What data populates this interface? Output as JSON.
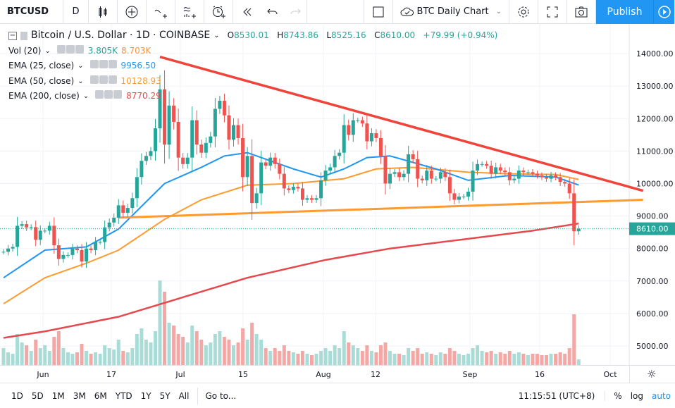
{
  "toolbar": {
    "symbol": "BTCUSD",
    "interval": "D",
    "chart_name": "BTC Daily Chart",
    "publish": "Publish"
  },
  "legend": {
    "title": "Bitcoin / U.S. Dollar · 1D · COINBASE",
    "o_label": "O",
    "o": "8530.01",
    "h_label": "H",
    "h": "8743.86",
    "l_label": "L",
    "l": "8525.16",
    "c_label": "C",
    "c": "8610.00",
    "change": "+79.99 (+0.94%)",
    "indicators": [
      {
        "name": "Vol (20)",
        "values": [
          "3.805K",
          "8.703K"
        ],
        "colors": [
          "#26a69a",
          "#f7953c"
        ]
      },
      {
        "name": "EMA (25, close)",
        "values": [
          "9956.50"
        ],
        "colors": [
          "#2196f3"
        ]
      },
      {
        "name": "EMA (50, close)",
        "values": [
          "10128.93"
        ],
        "colors": [
          "#ff9a2e"
        ]
      },
      {
        "name": "EMA (200, close)",
        "values": [
          "8770.29"
        ],
        "colors": [
          "#e5494d"
        ]
      }
    ]
  },
  "price_axis": {
    "ticks": [
      "14000.00",
      "13000.00",
      "12000.00",
      "11000.00",
      "10000.00",
      "9000.00",
      "8000.00",
      "7000.00",
      "6000.00",
      "5000.00"
    ],
    "last_price": "8610.00"
  },
  "time_axis": {
    "labels": [
      "Jun",
      "17",
      "Jul",
      "15",
      "Aug",
      "12",
      "Sep",
      "16",
      "Oct"
    ]
  },
  "bottom": {
    "ranges": [
      "1D",
      "5D",
      "1M",
      "3M",
      "6M",
      "YTD",
      "1Y",
      "5Y",
      "All"
    ],
    "goto": "Go to...",
    "clock": "11:15:51 (UTC+8)",
    "percent": "%",
    "log": "log",
    "auto": "auto"
  },
  "colors": {
    "up": "#26a69a",
    "down": "#ef5350",
    "accent": "#2196f3",
    "trend": "#f0443a",
    "support": "#ff9a2e"
  },
  "series": {
    "start_date": "05-23",
    "closes": [
      7900,
      8000,
      8050,
      8700,
      8750,
      8650,
      8660,
      8270,
      8550,
      8550,
      8700,
      8100,
      7680,
      7800,
      7800,
      8000,
      7950,
      7600,
      8000,
      7950,
      8200,
      8200,
      8650,
      8800,
      8950,
      9330,
      9100,
      9250,
      9550,
      10200,
      10700,
      10850,
      11000,
      11700,
      12900,
      11200,
      12400,
      11900,
      10800,
      10600,
      10800,
      11950,
      11200,
      10950,
      11250,
      11450,
      12300,
      12550,
      12100,
      11350,
      11800,
      11400,
      10200,
      10850,
      9400,
      9700,
      10650,
      10550,
      10800,
      10600,
      10300,
      9850,
      9800,
      9900,
      9850,
      9500,
      9550,
      9500,
      9550,
      10100,
      10400,
      10500,
      10850,
      10950,
      11800,
      11500,
      11950,
      11950,
      11850,
      11300,
      11550,
      11400,
      10850,
      10000,
      10300,
      10350,
      10200,
      10300,
      10900,
      10750,
      10150,
      10100,
      10400,
      10150,
      10150,
      10350,
      10200,
      9700,
      9500,
      9600,
      9600,
      9750,
      10400,
      10600,
      10600,
      10550,
      10300,
      10500,
      10400,
      10350,
      10100,
      10150,
      10400,
      10350,
      10350,
      10300,
      10250,
      10200,
      10150,
      10250,
      10200,
      10050,
      10000,
      9700,
      8530,
      8610
    ],
    "volumes_k": [
      12,
      9,
      8,
      22,
      16,
      14,
      10,
      18,
      12,
      14,
      10,
      20,
      24,
      12,
      9,
      8,
      9,
      15,
      10,
      8,
      9,
      8,
      14,
      12,
      11,
      18,
      10,
      9,
      12,
      22,
      26,
      18,
      16,
      24,
      60,
      52,
      30,
      28,
      22,
      20,
      16,
      28,
      24,
      18,
      14,
      16,
      22,
      24,
      20,
      18,
      14,
      16,
      26,
      18,
      30,
      22,
      18,
      12,
      10,
      12,
      10,
      14,
      10,
      9,
      8,
      10,
      8,
      7,
      8,
      10,
      12,
      10,
      14,
      12,
      24,
      16,
      14,
      12,
      10,
      14,
      10,
      9,
      14,
      16,
      10,
      8,
      8,
      7,
      12,
      10,
      12,
      8,
      9,
      8,
      7,
      9,
      8,
      12,
      10,
      8,
      7,
      8,
      12,
      14,
      10,
      9,
      10,
      8,
      9,
      8,
      10,
      8,
      9,
      8,
      7,
      8,
      8,
      7,
      7,
      8,
      8,
      9,
      8,
      12,
      36,
      4
    ]
  },
  "ema_lines": {
    "ema25": [
      [
        "05-23",
        7100
      ],
      [
        "06-01",
        7950
      ],
      [
        "06-10",
        8050
      ],
      [
        "06-17",
        8600
      ],
      [
        "06-22",
        9300
      ],
      [
        "06-27",
        10000
      ],
      [
        "07-05",
        10500
      ],
      [
        "07-10",
        10850
      ],
      [
        "07-15",
        10950
      ],
      [
        "07-20",
        10700
      ],
      [
        "07-25",
        10450
      ],
      [
        "07-31",
        10200
      ],
      [
        "08-05",
        10450
      ],
      [
        "08-10",
        10800
      ],
      [
        "08-15",
        10850
      ],
      [
        "08-25",
        10450
      ],
      [
        "09-01",
        10100
      ],
      [
        "09-10",
        10250
      ],
      [
        "09-20",
        10200
      ],
      [
        "09-25",
        9956.5
      ]
    ],
    "ema50": [
      [
        "05-23",
        6300
      ],
      [
        "06-01",
        7100
      ],
      [
        "06-10",
        7550
      ],
      [
        "06-17",
        7950
      ],
      [
        "06-27",
        8900
      ],
      [
        "07-05",
        9500
      ],
      [
        "07-15",
        9950
      ],
      [
        "07-25",
        10000
      ],
      [
        "08-05",
        10150
      ],
      [
        "08-12",
        10450
      ],
      [
        "08-20",
        10500
      ],
      [
        "09-01",
        10350
      ],
      [
        "09-10",
        10300
      ],
      [
        "09-20",
        10280
      ],
      [
        "09-25",
        10128.93
      ]
    ],
    "ema200": [
      [
        "05-23",
        5250
      ],
      [
        "06-01",
        5450
      ],
      [
        "06-17",
        5900
      ],
      [
        "07-01",
        6500
      ],
      [
        "07-15",
        7100
      ],
      [
        "08-01",
        7650
      ],
      [
        "08-15",
        8000
      ],
      [
        "09-01",
        8300
      ],
      [
        "09-15",
        8550
      ],
      [
        "09-25",
        8770.29
      ]
    ]
  },
  "trendlines": {
    "resistance": [
      [
        "06-26",
        13900
      ],
      [
        "10-09",
        9780
      ]
    ],
    "support": [
      [
        "06-17",
        8950
      ],
      [
        "10-09",
        9500
      ]
    ]
  }
}
